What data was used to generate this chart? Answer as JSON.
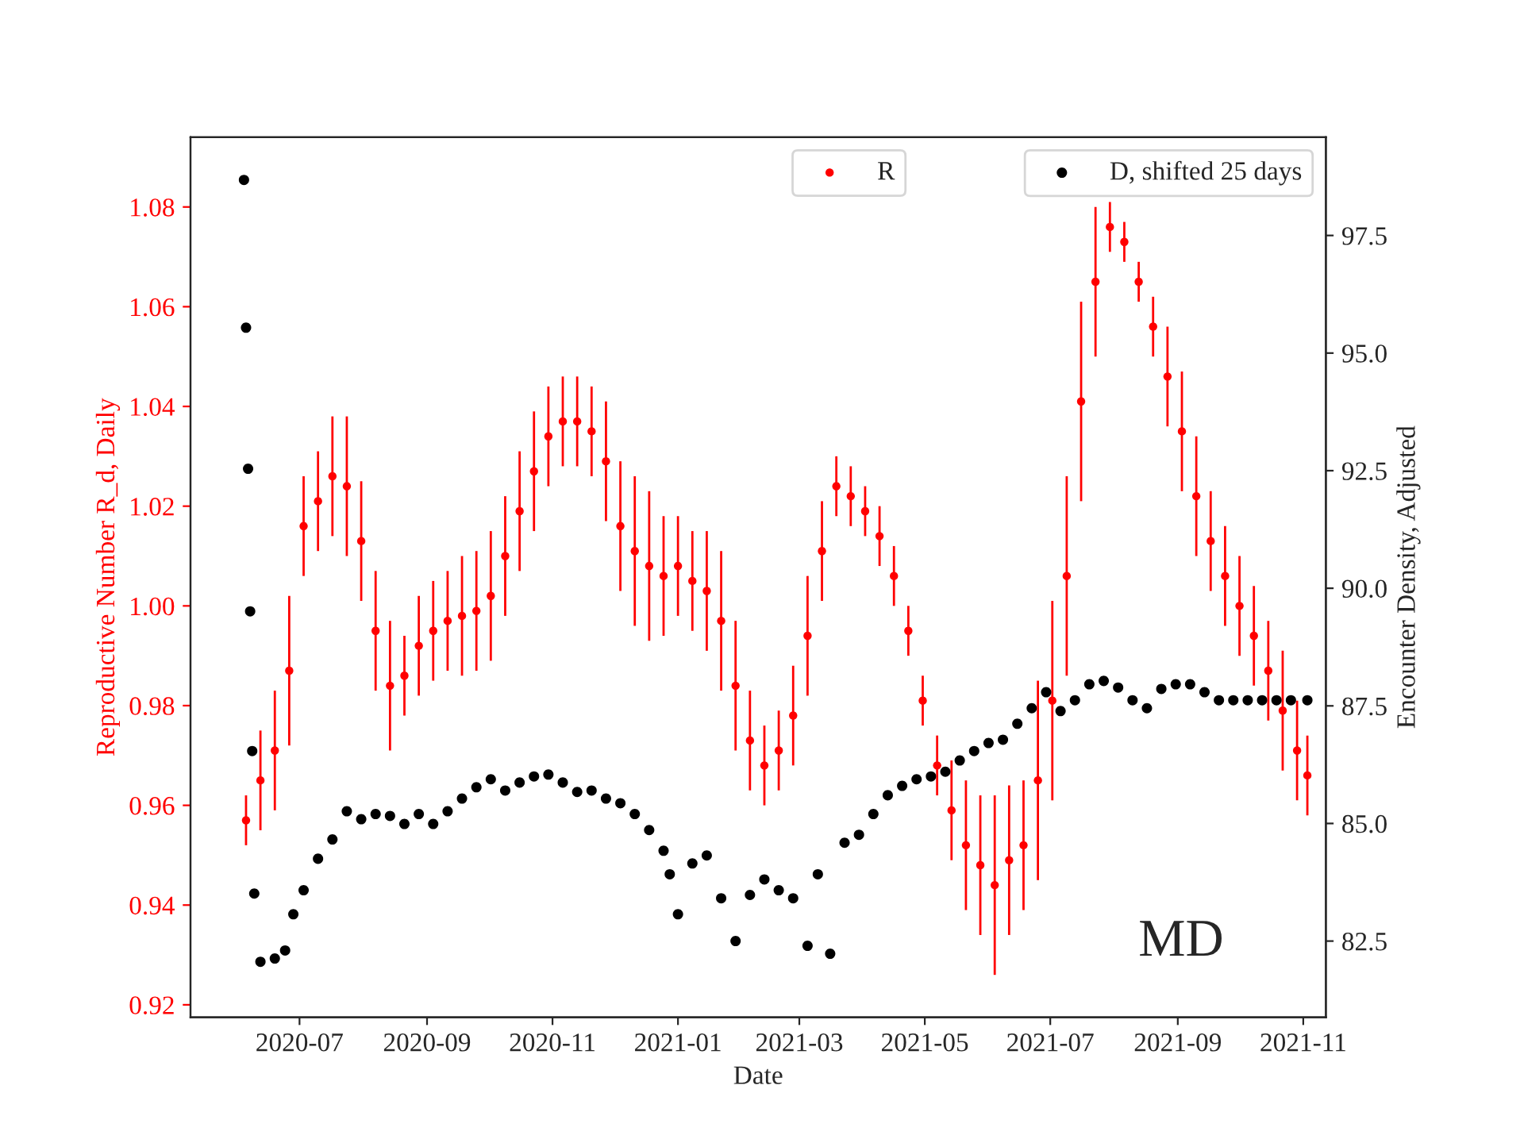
{
  "chart_data": {
    "type": "scatter",
    "xlabel": "Date",
    "ylabel": "Reproductive Number R_d, Daily",
    "y2label": "Encounter Density, Adjusted",
    "annotations": [
      "MD"
    ],
    "xlim": [
      "2020-05-09",
      "2021-11-12"
    ],
    "xticks": [
      "2020-07",
      "2020-09",
      "2020-11",
      "2021-01",
      "2021-03",
      "2021-05",
      "2021-07",
      "2021-09",
      "2021-11"
    ],
    "ylim": [
      0.9175,
      1.094
    ],
    "yticks": [
      {
        "value": 0.92,
        "label": "0.92"
      },
      {
        "value": 0.94,
        "label": "0.94"
      },
      {
        "value": 0.96,
        "label": "0.96"
      },
      {
        "value": 0.98,
        "label": "0.98"
      },
      {
        "value": 1.0,
        "label": "1.00"
      },
      {
        "value": 1.02,
        "label": "1.02"
      },
      {
        "value": 1.04,
        "label": "1.04"
      },
      {
        "value": 1.06,
        "label": "1.06"
      },
      {
        "value": 1.08,
        "label": "1.08"
      }
    ],
    "y2lim": [
      80.88,
      99.59
    ],
    "y2ticks": [
      {
        "value": 82.5,
        "label": "82.5"
      },
      {
        "value": 85,
        "label": "85.0"
      },
      {
        "value": 87.5,
        "label": "87.5"
      },
      {
        "value": 90,
        "label": "90.0"
      },
      {
        "value": 92.5,
        "label": "92.5"
      },
      {
        "value": 95,
        "label": "95.0"
      },
      {
        "value": 97.5,
        "label": "97.5"
      }
    ],
    "grid": false,
    "legend": "top right",
    "marker": "circle",
    "series": [
      {
        "name": "R",
        "color": "#ff0000",
        "axis": "y",
        "x": [
          "2020-06-05",
          "2020-06-12",
          "2020-06-19",
          "2020-06-26",
          "2020-07-03",
          "2020-07-10",
          "2020-07-17",
          "2020-07-24",
          "2020-07-31",
          "2020-08-07",
          "2020-08-14",
          "2020-08-21",
          "2020-08-28",
          "2020-09-04",
          "2020-09-11",
          "2020-09-18",
          "2020-09-25",
          "2020-10-02",
          "2020-10-09",
          "2020-10-16",
          "2020-10-23",
          "2020-10-30",
          "2020-11-06",
          "2020-11-13",
          "2020-11-20",
          "2020-11-27",
          "2020-12-04",
          "2020-12-11",
          "2020-12-18",
          "2020-12-25",
          "2021-01-01",
          "2021-01-08",
          "2021-01-15",
          "2021-01-22",
          "2021-01-29",
          "2021-02-05",
          "2021-02-12",
          "2021-02-19",
          "2021-02-26",
          "2021-03-05",
          "2021-03-12",
          "2021-03-19",
          "2021-03-26",
          "2021-04-02",
          "2021-04-09",
          "2021-04-16",
          "2021-04-23",
          "2021-04-30",
          "2021-05-07",
          "2021-05-14",
          "2021-05-21",
          "2021-05-28",
          "2021-06-04",
          "2021-06-11",
          "2021-06-18",
          "2021-06-25",
          "2021-07-02",
          "2021-07-09",
          "2021-07-16",
          "2021-07-23",
          "2021-07-30",
          "2021-08-06",
          "2021-08-13",
          "2021-08-20",
          "2021-08-27",
          "2021-09-03",
          "2021-09-10",
          "2021-09-17",
          "2021-09-24",
          "2021-10-01",
          "2021-10-08",
          "2021-10-15",
          "2021-10-22",
          "2021-10-29",
          "2021-11-03"
        ],
        "values": [
          0.957,
          0.965,
          0.971,
          0.987,
          1.016,
          1.021,
          1.026,
          1.024,
          1.013,
          0.995,
          0.984,
          0.986,
          0.992,
          0.995,
          0.997,
          0.998,
          0.999,
          1.002,
          1.01,
          1.019,
          1.027,
          1.034,
          1.037,
          1.037,
          1.035,
          1.029,
          1.016,
          1.011,
          1.008,
          1.006,
          1.008,
          1.005,
          1.003,
          0.997,
          0.984,
          0.973,
          0.968,
          0.971,
          0.978,
          0.994,
          1.011,
          1.024,
          1.022,
          1.019,
          1.014,
          1.006,
          0.995,
          0.981,
          0.968,
          0.959,
          0.952,
          0.948,
          0.944,
          0.949,
          0.952,
          0.965,
          0.981,
          1.006,
          1.041,
          1.065,
          1.076,
          1.073,
          1.065,
          1.056,
          1.046,
          1.035,
          1.022,
          1.013,
          1.006,
          1.0,
          0.994,
          0.987,
          0.979,
          0.971,
          0.966
        ],
        "errors": [
          0.005,
          0.01,
          0.012,
          0.015,
          0.01,
          0.01,
          0.012,
          0.014,
          0.012,
          0.012,
          0.013,
          0.008,
          0.01,
          0.01,
          0.01,
          0.012,
          0.012,
          0.013,
          0.012,
          0.012,
          0.012,
          0.01,
          0.009,
          0.009,
          0.009,
          0.012,
          0.013,
          0.015,
          0.015,
          0.012,
          0.01,
          0.01,
          0.012,
          0.014,
          0.013,
          0.01,
          0.008,
          0.008,
          0.01,
          0.012,
          0.01,
          0.006,
          0.006,
          0.005,
          0.006,
          0.006,
          0.005,
          0.005,
          0.006,
          0.01,
          0.013,
          0.014,
          0.018,
          0.015,
          0.013,
          0.02,
          0.02,
          0.02,
          0.02,
          0.015,
          0.005,
          0.004,
          0.004,
          0.006,
          0.01,
          0.012,
          0.012,
          0.01,
          0.01,
          0.01,
          0.01,
          0.01,
          0.012,
          0.01,
          0.008
        ]
      },
      {
        "name": "D, shifted 25 days",
        "color": "#000000",
        "axis": "y2",
        "x": [
          "2020-06-04",
          "2020-06-05",
          "2020-06-06",
          "2020-06-07",
          "2020-06-08",
          "2020-06-09",
          "2020-06-12",
          "2020-06-19",
          "2020-06-24",
          "2020-06-28",
          "2020-07-03",
          "2020-07-10",
          "2020-07-17",
          "2020-07-24",
          "2020-07-31",
          "2020-08-07",
          "2020-08-14",
          "2020-08-21",
          "2020-08-28",
          "2020-09-04",
          "2020-09-11",
          "2020-09-18",
          "2020-09-25",
          "2020-10-02",
          "2020-10-09",
          "2020-10-16",
          "2020-10-23",
          "2020-10-30",
          "2020-11-06",
          "2020-11-13",
          "2020-11-20",
          "2020-11-27",
          "2020-12-04",
          "2020-12-11",
          "2020-12-18",
          "2020-12-25",
          "2020-12-28",
          "2021-01-01",
          "2021-01-08",
          "2021-01-15",
          "2021-01-22",
          "2021-01-29",
          "2021-02-05",
          "2021-02-12",
          "2021-02-19",
          "2021-02-26",
          "2021-03-05",
          "2021-03-10",
          "2021-03-16",
          "2021-03-23",
          "2021-03-30",
          "2021-04-06",
          "2021-04-13",
          "2021-04-20",
          "2021-04-27",
          "2021-05-04",
          "2021-05-11",
          "2021-05-18",
          "2021-05-25",
          "2021-06-01",
          "2021-06-08",
          "2021-06-15",
          "2021-06-22",
          "2021-06-29",
          "2021-07-06",
          "2021-07-13",
          "2021-07-20",
          "2021-07-27",
          "2021-08-03",
          "2021-08-10",
          "2021-08-17",
          "2021-08-24",
          "2021-08-31",
          "2021-09-07",
          "2021-09-14",
          "2021-09-21",
          "2021-09-28",
          "2021-10-05",
          "2021-10-12",
          "2021-10-19",
          "2021-10-26",
          "2021-11-03"
        ],
        "values": [
          98.68,
          95.54,
          92.54,
          89.51,
          86.54,
          83.51,
          82.06,
          82.13,
          82.3,
          83.07,
          83.58,
          84.25,
          84.66,
          85.26,
          85.09,
          85.2,
          85.16,
          84.99,
          85.2,
          84.99,
          85.26,
          85.53,
          85.77,
          85.94,
          85.7,
          85.87,
          86.0,
          86.04,
          85.87,
          85.67,
          85.7,
          85.53,
          85.43,
          85.2,
          84.86,
          84.42,
          83.92,
          83.07,
          84.15,
          84.32,
          83.41,
          82.5,
          83.48,
          83.81,
          83.58,
          83.41,
          82.4,
          83.92,
          82.23,
          84.59,
          84.76,
          85.2,
          85.6,
          85.8,
          85.94,
          86.0,
          86.1,
          86.34,
          86.54,
          86.71,
          86.78,
          87.12,
          87.45,
          87.79,
          87.39,
          87.62,
          87.96,
          88.03,
          87.89,
          87.62,
          87.45,
          87.86,
          87.96,
          87.96,
          87.79,
          87.62,
          87.62,
          87.62,
          87.62,
          87.62,
          87.62,
          87.62
        ]
      }
    ]
  }
}
